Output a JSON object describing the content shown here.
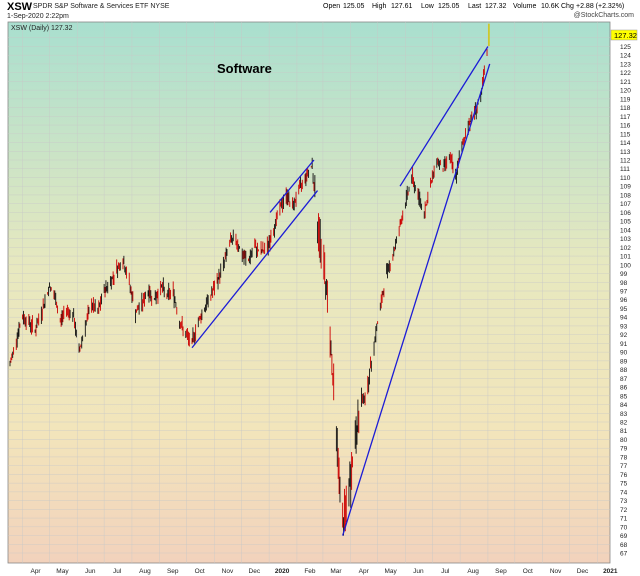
{
  "header": {
    "symbol": "XSW",
    "name": "SPDR S&P Software & Services ETF",
    "exchange": "NYSE",
    "date": "1-Sep-2020 2:22pm",
    "open_label": "Open",
    "open": "125.05",
    "high_label": "High",
    "high": "127.61",
    "low_label": "Low",
    "low": "125.05",
    "last_label": "Last",
    "last": "127.32",
    "volume_label": "Volume",
    "volume": "10.6K",
    "chg_label": "Chg",
    "chg": "+2.88 (+2.32%)",
    "watermark": "@StockCharts.com"
  },
  "chart_data": {
    "type": "line",
    "title": "Software",
    "legend": "XSW (Daily) 127.32",
    "last_value": "127.32",
    "ylim": [
      67,
      127
    ],
    "y_ticks": [
      67,
      68,
      69,
      70,
      71,
      72,
      73,
      74,
      75,
      76,
      77,
      78,
      79,
      80,
      81,
      82,
      83,
      84,
      85,
      86,
      87,
      88,
      89,
      90,
      91,
      92,
      93,
      94,
      95,
      96,
      97,
      98,
      99,
      100,
      101,
      102,
      103,
      104,
      105,
      106,
      107,
      108,
      109,
      110,
      111,
      112,
      113,
      114,
      115,
      116,
      117,
      118,
      119,
      120,
      121,
      122,
      123,
      124,
      125,
      126
    ],
    "x_ticks": [
      "Apr",
      "May",
      "Jun",
      "Jul",
      "Aug",
      "Sep",
      "Oct",
      "Nov",
      "Dec",
      "2020",
      "Feb",
      "Mar",
      "Apr",
      "May",
      "Jun",
      "Jul",
      "Aug",
      "Sep",
      "Oct",
      "Nov",
      "Dec",
      "2021"
    ],
    "x_tick_months": [
      0,
      1,
      2,
      3,
      4,
      5,
      6,
      7,
      8,
      9,
      10,
      11,
      12,
      13,
      14,
      15,
      16,
      17,
      18,
      19,
      20,
      21
    ],
    "x_start": "2019-03-18",
    "series": [
      {
        "values": [
          [
            "2019-03-18",
            88.5
          ],
          [
            "2019-03-25",
            91.5
          ],
          [
            "2019-04-01",
            94.0
          ],
          [
            "2019-04-08",
            93.5
          ],
          [
            "2019-04-15",
            92.5
          ],
          [
            "2019-04-22",
            94.5
          ],
          [
            "2019-05-01",
            97.5
          ],
          [
            "2019-05-08",
            96.0
          ],
          [
            "2019-05-13",
            93.5
          ],
          [
            "2019-05-20",
            95.0
          ],
          [
            "2019-05-28",
            94.0
          ],
          [
            "2019-06-03",
            90.0
          ],
          [
            "2019-06-10",
            93.0
          ],
          [
            "2019-06-17",
            95.5
          ],
          [
            "2019-06-24",
            94.5
          ],
          [
            "2019-07-01",
            97.0
          ],
          [
            "2019-07-08",
            98.0
          ],
          [
            "2019-07-15",
            99.5
          ],
          [
            "2019-07-22",
            100.5
          ],
          [
            "2019-07-29",
            98.0
          ],
          [
            "2019-08-05",
            94.5
          ],
          [
            "2019-08-12",
            95.5
          ],
          [
            "2019-08-19",
            97.0
          ],
          [
            "2019-08-26",
            96.0
          ],
          [
            "2019-09-03",
            97.5
          ],
          [
            "2019-09-09",
            96.5
          ],
          [
            "2019-09-16",
            97.0
          ],
          [
            "2019-09-23",
            93.5
          ],
          [
            "2019-09-30",
            92.0
          ],
          [
            "2019-10-07",
            91.0
          ],
          [
            "2019-10-14",
            93.5
          ],
          [
            "2019-10-21",
            95.0
          ],
          [
            "2019-10-28",
            96.5
          ],
          [
            "2019-11-04",
            98.0
          ],
          [
            "2019-11-11",
            100.0
          ],
          [
            "2019-11-18",
            102.5
          ],
          [
            "2019-11-25",
            103.0
          ],
          [
            "2019-12-02",
            101.0
          ],
          [
            "2019-12-09",
            100.5
          ],
          [
            "2019-12-16",
            102.0
          ],
          [
            "2019-12-23",
            101.5
          ],
          [
            "2019-12-30",
            102.0
          ],
          [
            "2020-01-06",
            104.0
          ],
          [
            "2020-01-13",
            106.5
          ],
          [
            "2020-01-21",
            108.0
          ],
          [
            "2020-01-27",
            106.5
          ],
          [
            "2020-02-03",
            108.5
          ],
          [
            "2020-02-10",
            110.0
          ],
          [
            "2020-02-18",
            111.5
          ],
          [
            "2020-02-24",
            104.5
          ],
          [
            "2020-03-02",
            100.0
          ],
          [
            "2020-03-09",
            92.5
          ],
          [
            "2020-03-16",
            80.5
          ],
          [
            "2020-03-23",
            70.0
          ],
          [
            "2020-03-30",
            74.0
          ],
          [
            "2020-04-06",
            80.0
          ],
          [
            "2020-04-13",
            84.0
          ],
          [
            "2020-04-20",
            86.0
          ],
          [
            "2020-04-27",
            91.0
          ],
          [
            "2020-05-04",
            95.0
          ],
          [
            "2020-05-11",
            99.0
          ],
          [
            "2020-05-18",
            101.0
          ],
          [
            "2020-05-26",
            104.5
          ],
          [
            "2020-06-01",
            107.0
          ],
          [
            "2020-06-08",
            110.0
          ],
          [
            "2020-06-15",
            108.0
          ],
          [
            "2020-06-22",
            106.0
          ],
          [
            "2020-06-29",
            109.0
          ],
          [
            "2020-07-06",
            112.0
          ],
          [
            "2020-07-13",
            111.0
          ],
          [
            "2020-07-20",
            112.5
          ],
          [
            "2020-07-27",
            110.0
          ],
          [
            "2020-08-03",
            113.5
          ],
          [
            "2020-08-10",
            116.0
          ],
          [
            "2020-08-17",
            117.5
          ],
          [
            "2020-08-24",
            119.0
          ],
          [
            "2020-08-31",
            124.0
          ],
          [
            "2020-09-01",
            127.32
          ]
        ]
      }
    ],
    "trendlines": [
      {
        "from": [
          "2019-10-07",
          90.5
        ],
        "to": [
          "2020-02-24",
          108.5
        ]
      },
      {
        "from": [
          "2020-01-02",
          106.0
        ],
        "to": [
          "2020-02-20",
          112.0
        ]
      },
      {
        "from": [
          "2020-03-23",
          69.0
        ],
        "to": [
          "2020-09-03",
          123.0
        ]
      },
      {
        "from": [
          "2020-05-26",
          109.0
        ],
        "to": [
          "2020-09-01",
          125.0
        ]
      }
    ],
    "grid": true,
    "colors": {
      "bar": "#cc0000",
      "bar_up": "#111111",
      "trendline": "#1c1cd6",
      "last_box": "#ffff00",
      "grid": "#c8c8c8"
    }
  }
}
